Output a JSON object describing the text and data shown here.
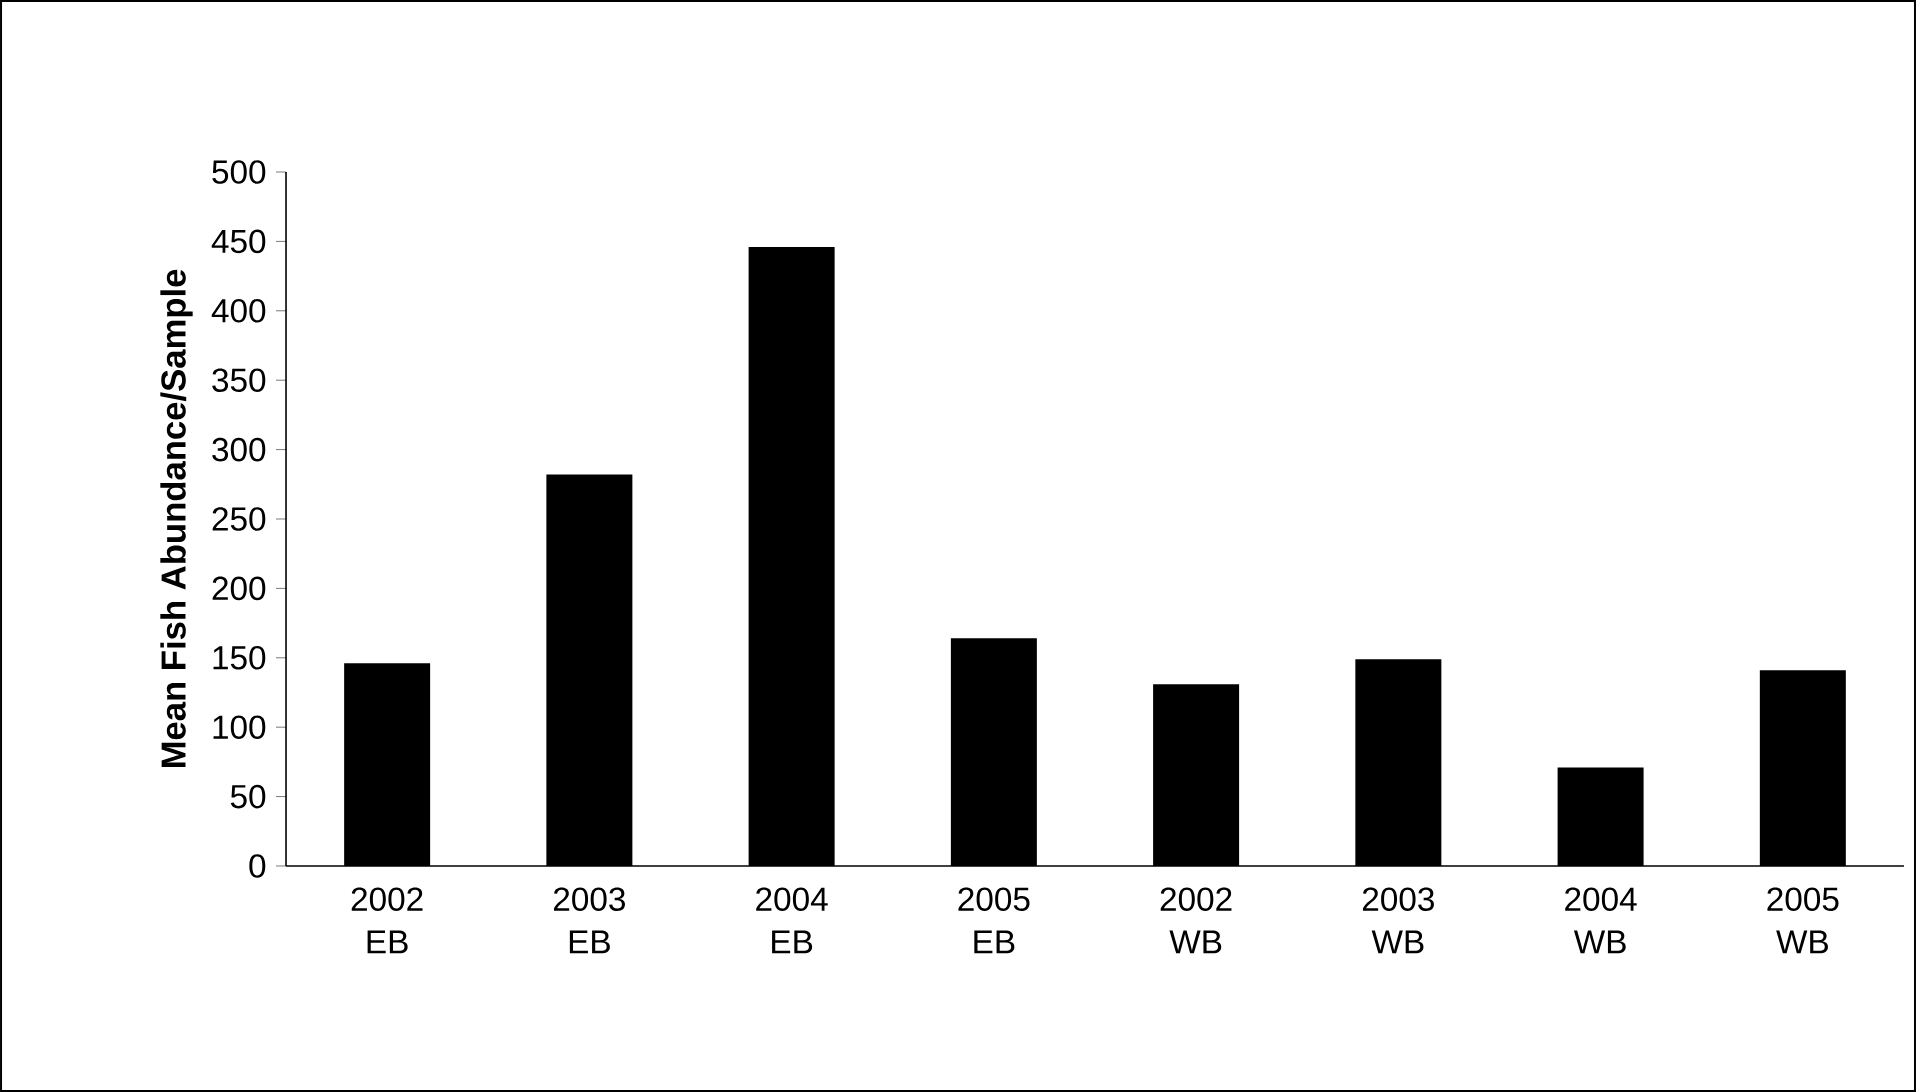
{
  "chart_data": {
    "type": "bar",
    "ylabel": "Mean Fish Abundance/Sample",
    "categories": [
      "2002 EB",
      "2003 EB",
      "2004 EB",
      "2005 EB",
      "2002 WB",
      "2003 WB",
      "2004 WB",
      "2005 WB"
    ],
    "values": [
      146,
      282,
      446,
      164,
      131,
      149,
      71,
      141
    ],
    "color": "#000000",
    "ylim": [
      0,
      500
    ],
    "yticks": [
      0,
      50,
      100,
      150,
      200,
      250,
      300,
      350,
      400,
      450,
      500
    ]
  }
}
